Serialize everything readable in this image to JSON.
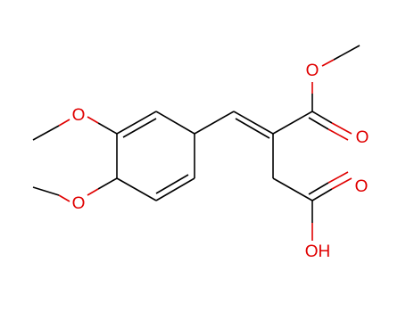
{
  "atoms": [
    {
      "label": "O"
    },
    {
      "label": "O"
    },
    {
      "label": "O"
    },
    {
      "label": "O"
    },
    {
      "label": "O"
    },
    {
      "label": "OH"
    }
  ]
}
